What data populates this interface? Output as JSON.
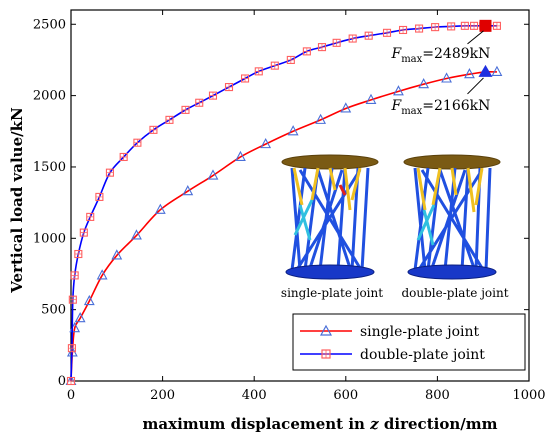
{
  "chart_data": {
    "type": "line",
    "title": "",
    "xlabel_prefix": "maximum displacement in ",
    "xlabel_var": "z",
    "xlabel_suffix": " direction/mm",
    "ylabel": "Vertical load value/kN",
    "xlim": [
      0,
      1000
    ],
    "ylim": [
      0,
      2600
    ],
    "xticks": [
      0,
      200,
      400,
      600,
      800,
      1000
    ],
    "yticks": [
      0,
      500,
      1000,
      1500,
      2000,
      2500
    ],
    "grid": false,
    "legend_position": "bottom-right",
    "series": [
      {
        "name": "single-plate joint",
        "color": "#ff0000",
        "line_color": "#ff0000",
        "marker": "triangle",
        "marker_color": "#4a6fd8",
        "x": [
          0,
          3,
          8,
          20,
          40,
          68,
          100,
          143,
          195,
          255,
          310,
          370,
          425,
          485,
          545,
          600,
          655,
          715,
          770,
          820,
          870,
          905,
          930
        ],
        "y": [
          0,
          200,
          370,
          440,
          560,
          740,
          880,
          1020,
          1200,
          1330,
          1440,
          1570,
          1660,
          1750,
          1830,
          1910,
          1970,
          2030,
          2080,
          2120,
          2150,
          2166,
          2166
        ]
      },
      {
        "name": "double-plate joint",
        "color": "#0000ff",
        "line_color": "#0000ff",
        "marker": "square",
        "marker_color": "#ff6060",
        "x": [
          0,
          2,
          4,
          8,
          16,
          28,
          42,
          62,
          85,
          115,
          145,
          180,
          215,
          250,
          280,
          310,
          345,
          380,
          410,
          445,
          480,
          515,
          548,
          580,
          615,
          650,
          690,
          725,
          760,
          795,
          830,
          860,
          880,
          900,
          930
        ],
        "y": [
          0,
          230,
          570,
          740,
          890,
          1040,
          1150,
          1290,
          1460,
          1570,
          1670,
          1760,
          1830,
          1900,
          1950,
          2000,
          2060,
          2120,
          2170,
          2210,
          2250,
          2310,
          2340,
          2370,
          2400,
          2420,
          2440,
          2460,
          2470,
          2480,
          2485,
          2489,
          2489,
          2489,
          2489
        ]
      }
    ],
    "annotations": [
      {
        "prefix": "F",
        "sub": "max",
        "text": "=2489kN",
        "x": 905,
        "y": 2489
      },
      {
        "prefix": "F",
        "sub": "max",
        "text": "=2166kN",
        "x": 905,
        "y": 2166
      }
    ],
    "inset_captions": [
      "single-plate joint",
      "double-plate joint"
    ]
  }
}
